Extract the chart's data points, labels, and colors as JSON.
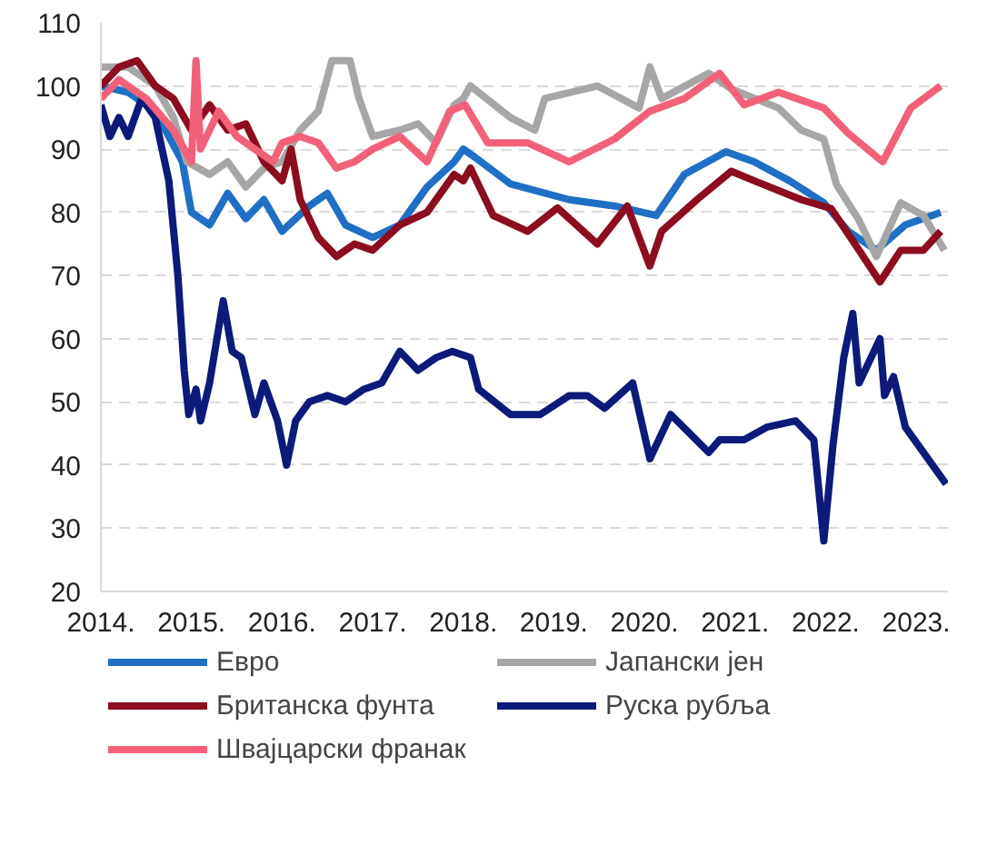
{
  "chart_data": {
    "type": "line",
    "xlim": [
      2014,
      2023.35
    ],
    "xticks": [
      {
        "value": 2014,
        "label": "2014."
      },
      {
        "value": 2015,
        "label": "2015."
      },
      {
        "value": 2016,
        "label": "2016."
      },
      {
        "value": 2017,
        "label": "2017."
      },
      {
        "value": 2018,
        "label": "2018."
      },
      {
        "value": 2019,
        "label": "2019."
      },
      {
        "value": 2020,
        "label": "2020."
      },
      {
        "value": 2021,
        "label": "2021."
      },
      {
        "value": 2022,
        "label": "2022."
      },
      {
        "value": 2023,
        "label": "2023."
      }
    ],
    "ylim": [
      20,
      110
    ],
    "yticks": [
      20,
      30,
      40,
      50,
      60,
      70,
      80,
      90,
      100,
      110
    ],
    "grid": "y",
    "legend": "bottom",
    "marker": "none",
    "line_style": "solid",
    "series": [
      {
        "name": "Евро",
        "color": "#1f6fc5",
        "x": [
          2014,
          2014.3,
          2014.6,
          2014.9,
          2015.0,
          2015.2,
          2015.4,
          2015.6,
          2015.8,
          2016.0,
          2016.3,
          2016.5,
          2016.7,
          2017.0,
          2017.3,
          2017.6,
          2017.9,
          2018.0,
          2018.13,
          2018.52,
          2019.17,
          2019.67,
          2020.13,
          2020.44,
          2020.9,
          2021.21,
          2021.6,
          2021.98,
          2022.25,
          2022.56,
          2022.88,
          2023.27
        ],
        "values": [
          100,
          99,
          96,
          88,
          80,
          78,
          83,
          79,
          82,
          77,
          81,
          83,
          78,
          76,
          78,
          84,
          88,
          90,
          88.7,
          84.5,
          82,
          81,
          79.5,
          86,
          89.6,
          88,
          85,
          81.5,
          77,
          74,
          78,
          80
        ]
      },
      {
        "name": "Јапански јен",
        "color": "#a6a6a6",
        "x": [
          2014,
          2014.3,
          2014.6,
          2014.8,
          2014.95,
          2015.2,
          2015.4,
          2015.6,
          2015.8,
          2016.0,
          2016.2,
          2016.4,
          2016.55,
          2016.75,
          2016.85,
          2017.0,
          2017.3,
          2017.5,
          2017.7,
          2017.9,
          2018.0,
          2018.08,
          2018.52,
          2018.79,
          2018.9,
          2019.48,
          2019.94,
          2020.06,
          2020.19,
          2020.71,
          2020.96,
          2021.48,
          2021.73,
          2021.98,
          2022.12,
          2022.37,
          2022.56,
          2022.83,
          2023.08,
          2023.31
        ],
        "values": [
          103,
          103,
          100,
          95,
          88,
          86,
          88,
          84,
          87,
          88,
          93,
          96,
          104,
          104,
          98,
          92,
          93,
          94,
          91,
          97,
          98,
          100,
          95,
          93,
          98,
          100,
          96.5,
          103,
          98,
          102,
          99.5,
          96.5,
          93,
          91.6,
          84.4,
          78.7,
          73,
          81.5,
          79.5,
          74
        ]
      },
      {
        "name": "Британска фунта",
        "color": "#8b0d1f",
        "x": [
          2014,
          2014.2,
          2014.4,
          2014.6,
          2014.8,
          2015.0,
          2015.2,
          2015.4,
          2015.6,
          2015.8,
          2016.0,
          2016.1,
          2016.2,
          2016.4,
          2016.6,
          2016.8,
          2017.0,
          2017.3,
          2017.6,
          2017.9,
          2018.0,
          2018.08,
          2018.33,
          2018.71,
          2019.04,
          2019.48,
          2019.81,
          2020.06,
          2020.19,
          2020.58,
          2020.96,
          2021.21,
          2021.73,
          2022.06,
          2022.37,
          2022.6,
          2022.83,
          2023.08,
          2023.27
        ],
        "values": [
          100,
          103,
          104,
          100,
          98,
          93,
          97,
          93,
          94,
          88,
          85,
          90,
          82,
          76,
          73,
          75,
          74,
          78,
          80,
          86,
          85,
          87,
          79.5,
          77,
          80.7,
          75,
          81,
          71.5,
          77,
          82,
          86.5,
          85,
          82,
          80.6,
          74,
          69,
          74,
          74,
          77
        ]
      },
      {
        "name": "Руска рубља",
        "color": "#0d1a7a",
        "x": [
          2014,
          2014.1,
          2014.2,
          2014.3,
          2014.45,
          2014.6,
          2014.75,
          2014.85,
          2014.92,
          2014.97,
          2015.05,
          2015.1,
          2015.2,
          2015.35,
          2015.45,
          2015.55,
          2015.7,
          2015.8,
          2015.95,
          2016.05,
          2016.15,
          2016.3,
          2016.5,
          2016.7,
          2016.9,
          2017.1,
          2017.3,
          2017.5,
          2017.7,
          2017.88,
          2018.08,
          2018.17,
          2018.52,
          2018.85,
          2019.17,
          2019.37,
          2019.56,
          2019.87,
          2020.06,
          2020.29,
          2020.71,
          2020.83,
          2021.1,
          2021.35,
          2021.67,
          2021.87,
          2021.98,
          2022.08,
          2022.2,
          2022.3,
          2022.37,
          2022.6,
          2022.65,
          2022.75,
          2022.88,
          2023.13,
          2023.33
        ],
        "values": [
          97,
          92,
          95,
          92,
          98,
          95,
          85,
          70,
          55,
          48,
          52,
          47,
          53,
          66,
          58,
          57,
          48,
          53,
          47,
          40,
          47,
          50,
          51,
          50,
          52,
          53,
          58,
          55,
          57,
          58,
          57,
          52,
          48,
          48,
          51,
          51,
          49,
          53,
          41,
          48,
          42,
          44,
          44,
          46,
          47,
          44,
          28,
          43,
          57,
          64,
          53,
          60,
          51,
          54,
          46,
          41,
          37
        ]
      },
      {
        "name": "Швајцарски франак",
        "color": "#f2607a",
        "x": [
          2014,
          2014.2,
          2014.5,
          2014.8,
          2015.0,
          2015.05,
          2015.1,
          2015.3,
          2015.5,
          2015.7,
          2015.9,
          2016.0,
          2016.2,
          2016.4,
          2016.6,
          2016.8,
          2017.0,
          2017.3,
          2017.6,
          2017.85,
          2018.02,
          2018.27,
          2018.71,
          2019.17,
          2019.67,
          2020.06,
          2020.44,
          2020.83,
          2021.1,
          2021.48,
          2021.98,
          2022.25,
          2022.63,
          2022.94,
          2023.27
        ],
        "values": [
          98,
          101,
          98,
          93,
          88,
          104,
          90,
          96,
          92,
          90,
          88,
          91,
          92,
          91,
          87,
          88,
          90,
          92,
          88,
          96,
          97,
          91,
          91,
          88,
          91.6,
          96,
          98,
          102,
          97,
          99,
          96.5,
          92.5,
          88,
          96.5,
          100
        ]
      }
    ]
  }
}
